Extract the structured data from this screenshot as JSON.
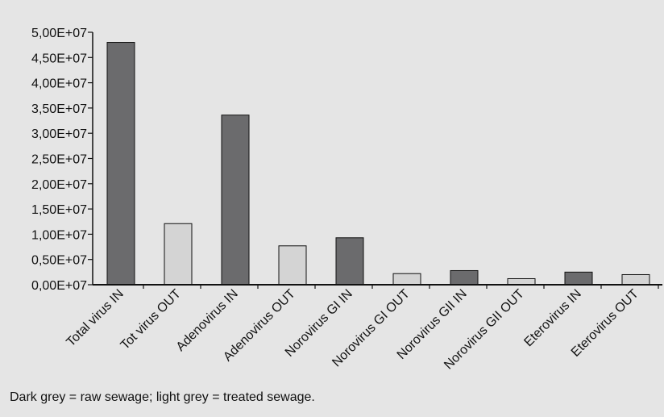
{
  "chart_data": {
    "type": "bar",
    "categories": [
      "Total virus IN",
      "Tot virus OUT",
      "Adenovirus IN",
      "Adenovirus OUT",
      "Norovirus GI IN",
      "Norovirus GI OUT",
      "Norovirus GII IN",
      "Norovirus GII OUT",
      "Eterovirus IN",
      "Eterovirus OUT"
    ],
    "values": [
      48000000,
      12100000,
      33600000,
      7700000,
      9300000,
      2200000,
      2800000,
      1200000,
      2500000,
      2000000
    ],
    "title": "",
    "xlabel": "",
    "ylabel": "",
    "ylim": [
      0,
      50000000
    ],
    "yticks": [
      0,
      5000000,
      10000000,
      15000000,
      20000000,
      25000000,
      30000000,
      35000000,
      40000000,
      45000000,
      50000000
    ],
    "ytick_labels": [
      "0,00E+07",
      "0,50E+07",
      "1,00E+07",
      "1,50E+07",
      "2,00E+07",
      "2,50E+07",
      "3,00E+07",
      "3,50E+07",
      "4,00E+07",
      "4,50E+07",
      "5,00E+07"
    ],
    "bar_colors": [
      "#6b6b6d",
      "#d4d4d4",
      "#6b6b6d",
      "#d4d4d4",
      "#6b6b6d",
      "#d4d4d4",
      "#6b6b6d",
      "#d4d4d4",
      "#6b6b6d",
      "#d4d4d4"
    ],
    "grid": false,
    "legend": "none"
  },
  "caption": "Dark grey = raw sewage; light grey = treated sewage.",
  "colors": {
    "background": "#e5e5e5",
    "dark_bar": "#6b6b6d",
    "light_bar": "#d4d4d4",
    "axis": "#111111"
  }
}
